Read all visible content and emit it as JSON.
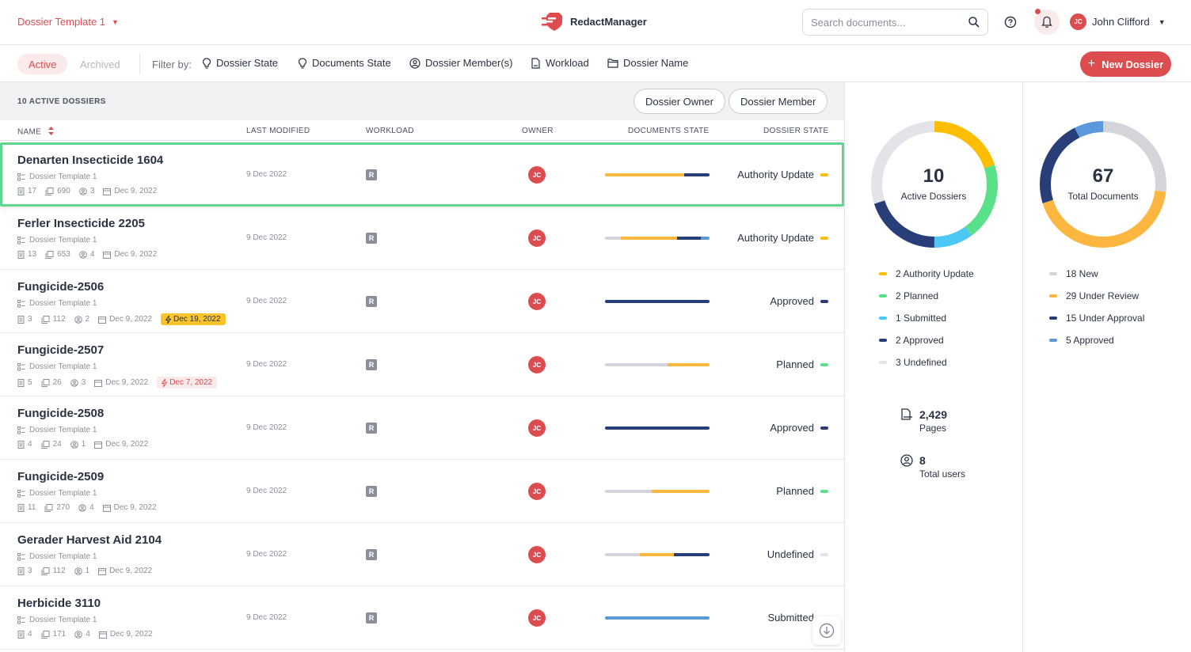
{
  "header": {
    "template_select": "Dossier Template 1",
    "app_name": "RedactManager",
    "search_placeholder": "Search documents...",
    "user_initials": "JC",
    "user_name": "John Clifford"
  },
  "filterbar": {
    "tab_active": "Active",
    "tab_archived": "Archived",
    "filter_by": "Filter by:",
    "filters": [
      "Dossier State",
      "Documents State",
      "Dossier Member(s)",
      "Workload",
      "Dossier Name"
    ],
    "new_dossier": "New Dossier"
  },
  "list": {
    "count_title": "10 ACTIVE DOSSIERS",
    "owner_toggle": "Dossier Owner",
    "member_toggle": "Dossier Member",
    "columns": [
      "NAME",
      "LAST MODIFIED",
      "WORKLOAD",
      "OWNER",
      "DOCUMENTS STATE",
      "DOSSIER STATE"
    ],
    "rows": [
      {
        "name": "Denarten Insecticide 1604",
        "template": "Dossier Template 1",
        "docs": "17",
        "pages": "690",
        "members": "3",
        "created": "Dec 9, 2022",
        "due": "",
        "due_style": "",
        "modified": "9 Dec 2022",
        "workload": "R",
        "owner": "JC",
        "state": "Authority Update",
        "state_color": "#fdbd00",
        "bar": [
          {
            "pct": 76,
            "color": "#fdb63f"
          },
          {
            "pct": 24,
            "color": "#283e79"
          }
        ]
      },
      {
        "name": "Ferler Insecticide 2205",
        "template": "Dossier Template 1",
        "docs": "13",
        "pages": "653",
        "members": "4",
        "created": "Dec 9, 2022",
        "due": "",
        "due_style": "",
        "modified": "9 Dec 2022",
        "workload": "R",
        "owner": "JC",
        "state": "Authority Update",
        "state_color": "#fdbd00",
        "bar": [
          {
            "pct": 15,
            "color": "#d3d5da"
          },
          {
            "pct": 54,
            "color": "#fdb63f"
          },
          {
            "pct": 23,
            "color": "#283e79"
          },
          {
            "pct": 8,
            "color": "#5b97db"
          }
        ]
      },
      {
        "name": "Fungicide-2506",
        "template": "Dossier Template 1",
        "docs": "3",
        "pages": "112",
        "members": "2",
        "created": "Dec 9, 2022",
        "due": "Dec 19, 2022",
        "due_style": "yellow",
        "modified": "9 Dec 2022",
        "workload": "R",
        "owner": "JC",
        "state": "Approved",
        "state_color": "#283e79",
        "bar": [
          {
            "pct": 100,
            "color": "#283e79"
          }
        ]
      },
      {
        "name": "Fungicide-2507",
        "template": "Dossier Template 1",
        "docs": "5",
        "pages": "26",
        "members": "3",
        "created": "Dec 9, 2022",
        "due": "Dec 7, 2022",
        "due_style": "red",
        "modified": "9 Dec 2022",
        "workload": "R",
        "owner": "JC",
        "state": "Planned",
        "state_color": "#5be08a",
        "bar": [
          {
            "pct": 60,
            "color": "#d3d5da"
          },
          {
            "pct": 40,
            "color": "#fdb63f"
          }
        ]
      },
      {
        "name": "Fungicide-2508",
        "template": "Dossier Template 1",
        "docs": "4",
        "pages": "24",
        "members": "1",
        "created": "Dec 9, 2022",
        "due": "",
        "due_style": "",
        "modified": "9 Dec 2022",
        "workload": "R",
        "owner": "JC",
        "state": "Approved",
        "state_color": "#283e79",
        "bar": [
          {
            "pct": 100,
            "color": "#283e79"
          }
        ]
      },
      {
        "name": "Fungicide-2509",
        "template": "Dossier Template 1",
        "docs": "11",
        "pages": "270",
        "members": "4",
        "created": "Dec 9, 2022",
        "due": "",
        "due_style": "",
        "modified": "9 Dec 2022",
        "workload": "R",
        "owner": "JC",
        "state": "Planned",
        "state_color": "#5be08a",
        "bar": [
          {
            "pct": 45,
            "color": "#d3d5da"
          },
          {
            "pct": 55,
            "color": "#fdb63f"
          }
        ]
      },
      {
        "name": "Gerader Harvest Aid 2104",
        "template": "Dossier Template 1",
        "docs": "3",
        "pages": "112",
        "members": "1",
        "created": "Dec 9, 2022",
        "due": "",
        "due_style": "",
        "modified": "9 Dec 2022",
        "workload": "R",
        "owner": "JC",
        "state": "Undefined",
        "state_color": "#e2e4e9",
        "bar": [
          {
            "pct": 33,
            "color": "#d3d5da"
          },
          {
            "pct": 33,
            "color": "#fdb63f"
          },
          {
            "pct": 34,
            "color": "#283e79"
          }
        ]
      },
      {
        "name": "Herbicide 3110",
        "template": "Dossier Template 1",
        "docs": "4",
        "pages": "171",
        "members": "4",
        "created": "Dec 9, 2022",
        "due": "",
        "due_style": "",
        "modified": "9 Dec 2022",
        "workload": "R",
        "owner": "JC",
        "state": "Submitted",
        "state_color": "#4dc8f4",
        "bar": [
          {
            "pct": 100,
            "color": "#5b97db"
          }
        ]
      }
    ]
  },
  "stats": {
    "dossiers": {
      "value": "10",
      "label": "Active Dossiers",
      "legend": [
        {
          "label": "2 Authority Update",
          "count": 2,
          "color": "#fdbd00"
        },
        {
          "label": "2 Planned",
          "count": 2,
          "color": "#5be08a"
        },
        {
          "label": "1 Submitted",
          "count": 1,
          "color": "#4dc8f4"
        },
        {
          "label": "2 Approved",
          "count": 2,
          "color": "#283e79"
        },
        {
          "label": "3 Undefined",
          "count": 3,
          "color": "#e2e4e9"
        }
      ]
    },
    "documents": {
      "value": "67",
      "label": "Total Documents",
      "legend": [
        {
          "label": "18 New",
          "count": 18,
          "color": "#d3d5da"
        },
        {
          "label": "29 Under Review",
          "count": 29,
          "color": "#fdb63f"
        },
        {
          "label": "15 Under Approval",
          "count": 15,
          "color": "#283e79"
        },
        {
          "label": "5 Approved",
          "count": 5,
          "color": "#5b97db"
        }
      ]
    },
    "pages_value": "2,429",
    "pages_label": "Pages",
    "users_value": "8",
    "users_label": "Total users"
  },
  "colors": {
    "accent": "#dd4d50"
  }
}
